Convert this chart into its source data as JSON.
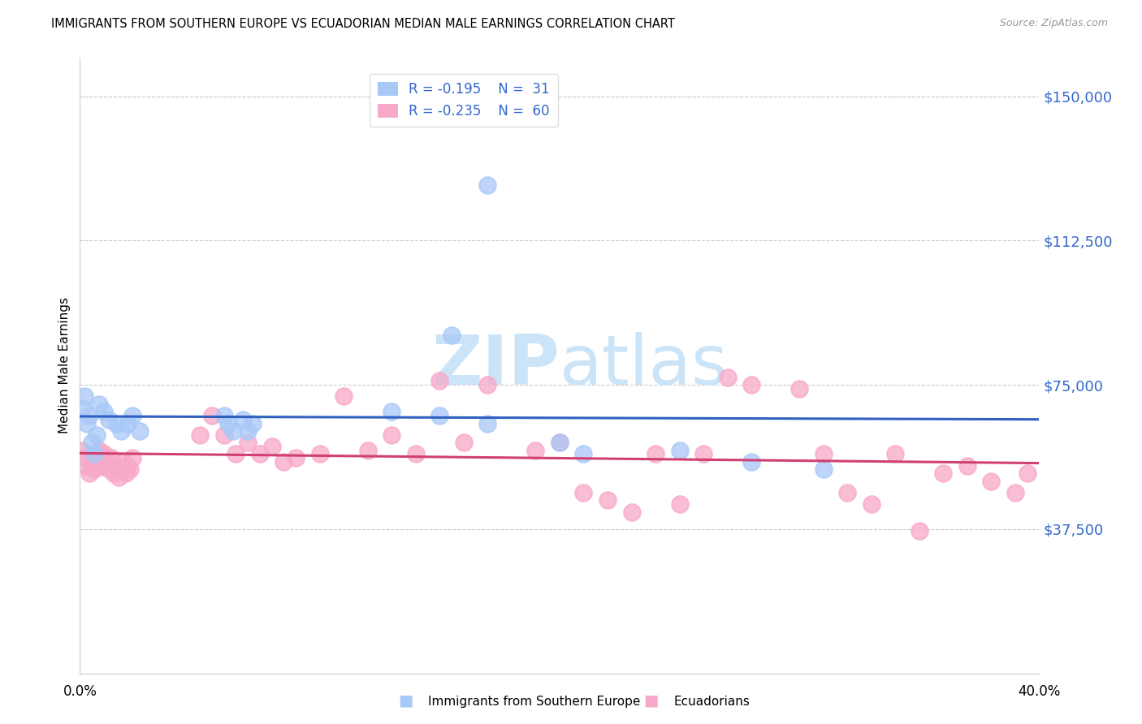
{
  "title": "IMMIGRANTS FROM SOUTHERN EUROPE VS ECUADORIAN MEDIAN MALE EARNINGS CORRELATION CHART",
  "source": "Source: ZipAtlas.com",
  "ylabel": "Median Male Earnings",
  "blue_line_color": "#3060c0",
  "pink_line_color": "#d04070",
  "blue_scatter_color": "#a8c8f8",
  "pink_scatter_color": "#f8a8c8",
  "label_color": "#3366cc",
  "grid_color": "#cccccc",
  "watermark_color": "#cce4f7",
  "xlim": [
    0.0,
    0.4
  ],
  "ylim": [
    0,
    160000
  ],
  "yticks": [
    37500,
    75000,
    112500,
    150000
  ],
  "ytick_labels": [
    "$37,500",
    "$75,000",
    "$112,500",
    "$150,000"
  ],
  "legend_blue_R": "R = -0.195",
  "legend_blue_N": "N =  31",
  "legend_pink_R": "R = -0.235",
  "legend_pink_N": "N =  60",
  "blue_x": [
    0.001,
    0.002,
    0.003,
    0.004,
    0.005,
    0.006,
    0.007,
    0.008,
    0.01,
    0.012,
    0.015,
    0.017,
    0.02,
    0.022,
    0.025,
    0.06,
    0.062,
    0.064,
    0.068,
    0.07,
    0.072,
    0.13,
    0.155,
    0.17,
    0.2,
    0.21,
    0.25,
    0.28,
    0.31,
    0.17,
    0.15
  ],
  "blue_y": [
    69000,
    72000,
    65000,
    67000,
    60000,
    57000,
    62000,
    70000,
    68000,
    66000,
    65000,
    63000,
    65000,
    67000,
    63000,
    67000,
    65000,
    63000,
    66000,
    63000,
    65000,
    68000,
    88000,
    127000,
    60000,
    57000,
    58000,
    55000,
    53000,
    65000,
    67000
  ],
  "pink_x": [
    0.001,
    0.002,
    0.003,
    0.004,
    0.005,
    0.006,
    0.007,
    0.008,
    0.009,
    0.01,
    0.011,
    0.012,
    0.013,
    0.014,
    0.015,
    0.016,
    0.017,
    0.018,
    0.019,
    0.02,
    0.021,
    0.022,
    0.05,
    0.055,
    0.06,
    0.065,
    0.07,
    0.075,
    0.08,
    0.085,
    0.09,
    0.1,
    0.11,
    0.12,
    0.13,
    0.14,
    0.15,
    0.16,
    0.17,
    0.19,
    0.2,
    0.21,
    0.22,
    0.24,
    0.26,
    0.27,
    0.28,
    0.3,
    0.31,
    0.32,
    0.33,
    0.34,
    0.35,
    0.36,
    0.37,
    0.38,
    0.39,
    0.395,
    0.25,
    0.23
  ],
  "pink_y": [
    58000,
    56000,
    54000,
    52000,
    55000,
    53000,
    55000,
    58000,
    54000,
    57000,
    55000,
    53000,
    56000,
    52000,
    54000,
    51000,
    53000,
    55000,
    52000,
    54000,
    53000,
    56000,
    62000,
    67000,
    62000,
    57000,
    60000,
    57000,
    59000,
    55000,
    56000,
    57000,
    72000,
    58000,
    62000,
    57000,
    76000,
    60000,
    75000,
    58000,
    60000,
    47000,
    45000,
    57000,
    57000,
    77000,
    75000,
    74000,
    57000,
    47000,
    44000,
    57000,
    37000,
    52000,
    54000,
    50000,
    47000,
    52000,
    44000,
    42000
  ]
}
